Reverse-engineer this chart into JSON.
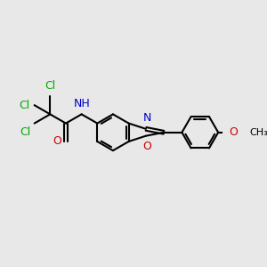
{
  "bg_color": "#e8e8e8",
  "bond_color": "#000000",
  "bond_width": 1.5,
  "atom_colors": {
    "C": "#000000",
    "N": "#0000cc",
    "O": "#cc0000",
    "Cl": "#00aa00",
    "H": "#000000"
  },
  "font_size": 9,
  "fig_width": 3.0,
  "fig_height": 3.0,
  "dpi": 100
}
